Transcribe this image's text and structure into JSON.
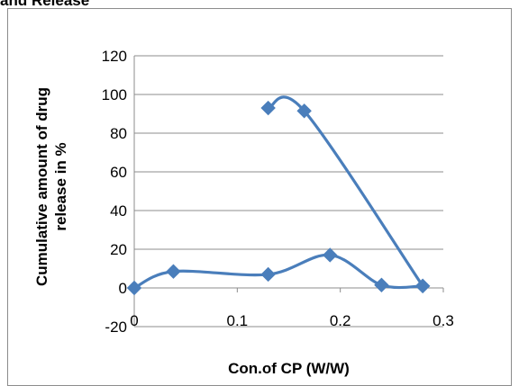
{
  "header": {
    "cut_title": "and Release"
  },
  "chart_data": {
    "type": "scatter",
    "xlabel": "Con.of CP (W/W)",
    "ylabel": [
      "Cumulative amount of drug",
      "release in %"
    ],
    "xlim": [
      0,
      0.3
    ],
    "ylim": [
      -20,
      120
    ],
    "x_ticks": [
      0,
      0.1,
      0.2,
      0.3
    ],
    "x_tick_labels": [
      "0",
      "0.1",
      "0.2",
      "0.3"
    ],
    "y_ticks": [
      -20,
      0,
      20,
      40,
      60,
      80,
      100,
      120
    ],
    "y_tick_labels": [
      "-20",
      "0",
      "20",
      "40",
      "60",
      "80",
      "100",
      "120"
    ],
    "grid": "horizontal",
    "legend": "none",
    "series": [
      {
        "color": "#4a7ebb",
        "smooth": true,
        "points": [
          [
            0,
            0
          ],
          [
            0.038,
            8.5
          ],
          [
            0.13,
            7
          ],
          [
            0.19,
            17
          ],
          [
            0.24,
            1.5
          ],
          [
            0.28,
            1
          ]
        ]
      },
      {
        "color": "#4a7ebb",
        "smooth": true,
        "points": [
          [
            0.13,
            93
          ],
          [
            0.165,
            91.5
          ],
          [
            0.28,
            1
          ]
        ]
      }
    ]
  }
}
